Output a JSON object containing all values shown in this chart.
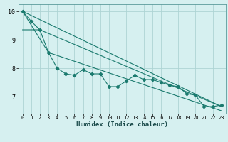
{
  "xlabel": "Humidex (Indice chaleur)",
  "bg_color": "#d6f0f0",
  "line_color": "#1a7a6e",
  "grid_color": "#aed4d4",
  "xlim": [
    -0.5,
    23.5
  ],
  "ylim": [
    6.4,
    10.25
  ],
  "yticks": [
    7,
    8,
    9,
    10
  ],
  "xticks": [
    0,
    1,
    2,
    3,
    4,
    5,
    6,
    7,
    8,
    9,
    10,
    11,
    12,
    13,
    14,
    15,
    16,
    17,
    18,
    19,
    20,
    21,
    22,
    23
  ],
  "line1_x": [
    0,
    1,
    2,
    3,
    4,
    5,
    6,
    7,
    8,
    9,
    10,
    11,
    12,
    13,
    14,
    15,
    16,
    17,
    18,
    19,
    20,
    21,
    22,
    23
  ],
  "line1_y": [
    10.0,
    9.65,
    9.35,
    8.55,
    8.0,
    7.8,
    7.75,
    7.95,
    7.8,
    7.8,
    7.35,
    7.35,
    7.55,
    7.75,
    7.6,
    7.6,
    7.5,
    7.4,
    7.35,
    7.1,
    7.05,
    6.65,
    6.65,
    6.7
  ],
  "line2_x": [
    0,
    23
  ],
  "line2_y": [
    10.0,
    6.65
  ],
  "line3_x": [
    0,
    2,
    23
  ],
  "line3_y": [
    9.35,
    9.35,
    6.65
  ],
  "line4_x": [
    0,
    3,
    23
  ],
  "line4_y": [
    10.0,
    8.55,
    6.5
  ]
}
